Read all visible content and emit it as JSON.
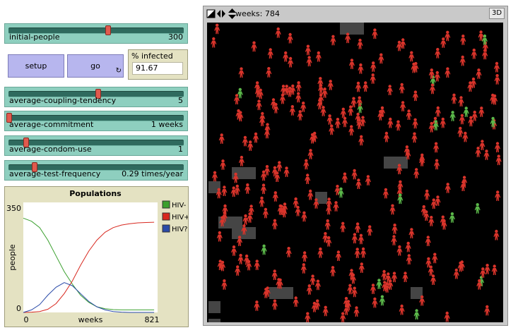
{
  "sliders": [
    {
      "label": "initial-people",
      "value": "300",
      "fraction": 0.57
    },
    {
      "label": "average-coupling-tendency",
      "value": "5",
      "fraction": 0.5
    },
    {
      "label": "average-commitment",
      "value": "1 weeks",
      "fraction": 0.0
    },
    {
      "label": "average-condom-use",
      "value": "1",
      "fraction": 0.1
    },
    {
      "label": "average-test-frequency",
      "value": "0.29 times/year",
      "fraction": 0.15
    }
  ],
  "buttons": {
    "setup": "setup",
    "go": "go",
    "forever_icon": "forever-loop-icon"
  },
  "monitor": {
    "label": "% infected",
    "value": "91.67"
  },
  "plot": {
    "title": "Populations",
    "ylabel": "people",
    "xlabel": "weeks",
    "ymin_label": "0",
    "ymax_label": "350",
    "xmin_label": "0",
    "xmax_label": "821"
  },
  "chart_data": {
    "type": "line",
    "title": "Populations",
    "xlabel": "weeks",
    "ylabel": "people",
    "xlim": [
      0,
      821
    ],
    "ylim": [
      0,
      350
    ],
    "grid": false,
    "legend": "right",
    "series": [
      {
        "name": "HIV-",
        "color": "#3aa02e",
        "x": [
          0,
          50,
          100,
          150,
          200,
          250,
          300,
          350,
          400,
          450,
          500,
          550,
          600,
          650,
          700,
          750,
          800
        ],
        "y": [
          300,
          290,
          270,
          230,
          180,
          130,
          90,
          55,
          32,
          18,
          12,
          9,
          8,
          8,
          8,
          8,
          8
        ]
      },
      {
        "name": "HIV+",
        "color": "#d8281f",
        "x": [
          0,
          50,
          100,
          150,
          200,
          250,
          300,
          350,
          400,
          450,
          500,
          550,
          600,
          650,
          700,
          750,
          800
        ],
        "y": [
          0,
          1,
          3,
          10,
          28,
          60,
          100,
          150,
          195,
          230,
          255,
          270,
          278,
          282,
          285,
          286,
          287
        ]
      },
      {
        "name": "HIV?",
        "color": "#2a4aa8",
        "x": [
          0,
          50,
          100,
          150,
          200,
          250,
          300,
          350,
          400,
          450,
          500,
          550,
          600,
          650,
          700,
          750,
          800
        ],
        "y": [
          0,
          8,
          25,
          55,
          80,
          95,
          85,
          60,
          35,
          18,
          8,
          3,
          1,
          0,
          0,
          0,
          0
        ]
      }
    ]
  },
  "view": {
    "ticks_label": "weeks: 784",
    "btn_3d": "3D",
    "icons": [
      "box-icon",
      "left-right-arrows-icon",
      "up-down-arrows-icon"
    ]
  },
  "colors": {
    "infected": "#d9342b",
    "healthy": "#5bb84a",
    "patch": "#454545"
  }
}
